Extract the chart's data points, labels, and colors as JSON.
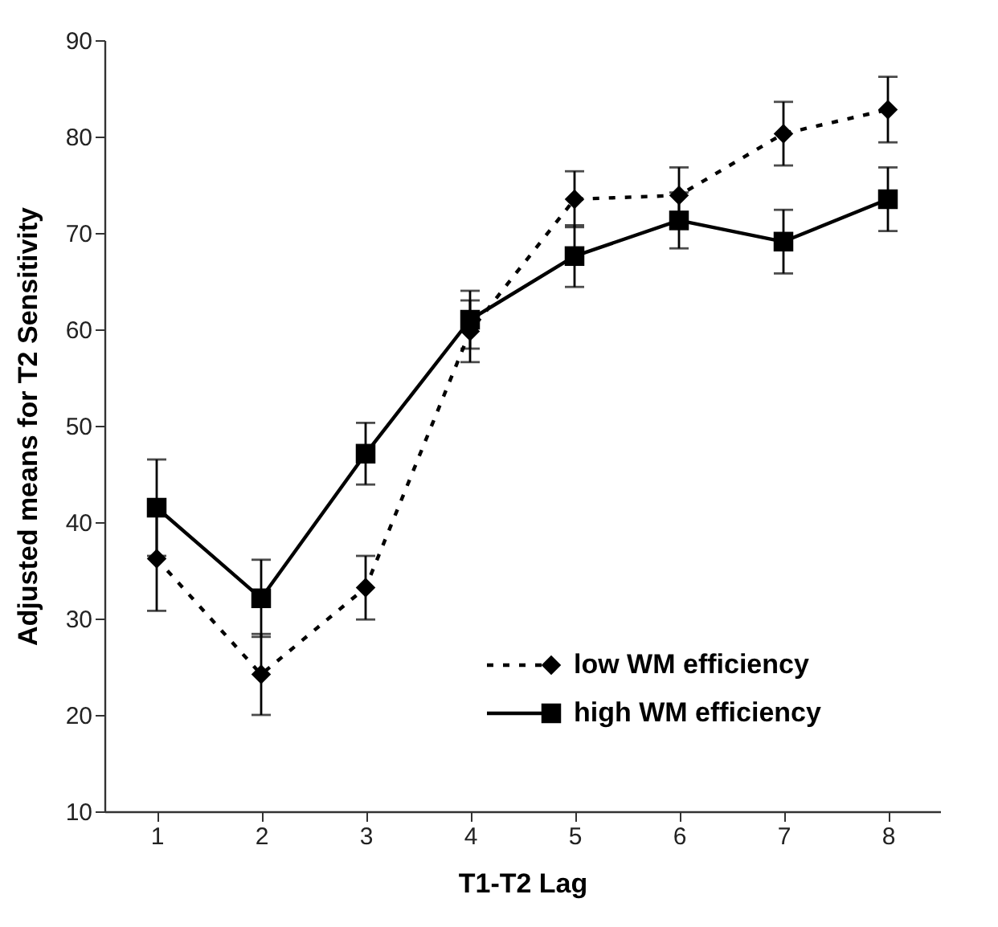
{
  "chart_data": {
    "type": "line",
    "xlabel": "T1-T2 Lag",
    "ylabel": "Adjusted means for T2 Sensitivity",
    "categories": [
      "1",
      "2",
      "3",
      "4",
      "5",
      "6",
      "7",
      "8"
    ],
    "series": [
      {
        "name": "low WM efficiency",
        "color": "#000000",
        "marker": "diamond",
        "line_style": "dotted",
        "values": [
          36.2,
          24.2,
          33.2,
          59.8,
          73.5,
          73.9,
          80.3,
          82.8
        ],
        "errors": [
          5.4,
          4.2,
          3.3,
          3.2,
          2.9,
          2.9,
          3.3,
          3.4
        ]
      },
      {
        "name": "high WM efficiency",
        "color": "#000000",
        "marker": "square",
        "line_style": "solid",
        "values": [
          41.5,
          32.1,
          47.1,
          61.0,
          67.6,
          71.3,
          69.1,
          73.5
        ],
        "errors": [
          5.0,
          4.0,
          3.2,
          3.0,
          3.2,
          2.9,
          3.3,
          3.3
        ]
      }
    ],
    "ylim": [
      10,
      90
    ],
    "yticks": [
      10,
      20,
      30,
      40,
      50,
      60,
      70,
      80,
      90
    ],
    "grid": false,
    "legend": "right"
  }
}
